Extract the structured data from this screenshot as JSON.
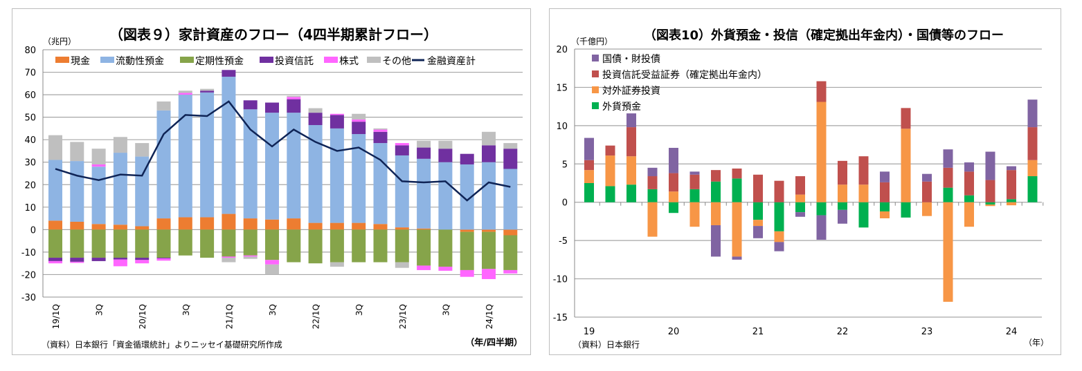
{
  "chart_data": [
    {
      "type": "bar",
      "stacked": true,
      "title": "（図表９）家計資産のフロー（4四半期累計フロー）",
      "ylabel": "（兆円）",
      "xlabel": "（年/四半期）",
      "source": "（資料）日本銀行「資金循環統計」よりニッセイ基礎研究所作成",
      "ylim": [
        -30,
        80
      ],
      "yticks": [
        80,
        70,
        60,
        50,
        40,
        30,
        20,
        10,
        0,
        -10,
        -20,
        -30
      ],
      "grid": true,
      "legend": "top",
      "categories": [
        "19/1Q",
        "19/2Q",
        "19/3Q",
        "19/4Q",
        "20/1Q",
        "20/2Q",
        "20/3Q",
        "20/4Q",
        "21/1Q",
        "21/2Q",
        "21/3Q",
        "21/4Q",
        "22/1Q",
        "22/2Q",
        "22/3Q",
        "22/4Q",
        "23/1Q",
        "23/2Q",
        "23/3Q",
        "23/4Q",
        "24/1Q",
        "24/2Q"
      ],
      "tick_labels": [
        "19/1Q",
        "",
        "3Q",
        "",
        "20/1Q",
        "",
        "3Q",
        "",
        "21/1Q",
        "",
        "3Q",
        "",
        "22/1Q",
        "",
        "3Q",
        "",
        "23/1Q",
        "",
        "3Q",
        "",
        "24/1Q",
        ""
      ],
      "series": [
        {
          "name": "現金",
          "color": "#ed7d31",
          "values": [
            4,
            3.5,
            2.5,
            2.2,
            1.5,
            5,
            5.5,
            5.5,
            7,
            5,
            4.5,
            5,
            3,
            3,
            3,
            2.5,
            1,
            0.5,
            0,
            -1,
            -1,
            -2.5
          ]
        },
        {
          "name": "流動性預金",
          "color": "#8eb4e3",
          "values": [
            27,
            27,
            25.5,
            32,
            31,
            48,
            54.5,
            55.5,
            61,
            48.5,
            47.5,
            47,
            43.5,
            42,
            39.5,
            36,
            32,
            31,
            30,
            29,
            30,
            27
          ]
        },
        {
          "name": "定期性預金",
          "color": "#86a44a",
          "values": [
            -12.5,
            -12.5,
            -12.5,
            -12.5,
            -12.5,
            -12.5,
            -11.5,
            -12.5,
            -12,
            -11.5,
            -13.5,
            -14.5,
            -15,
            -14.5,
            -14.5,
            -14.5,
            -14.5,
            -16,
            -16.5,
            -17,
            -16.5,
            -15.5
          ]
        },
        {
          "name": "投資信託",
          "color": "#7030a0",
          "values": [
            -1.5,
            -1.8,
            -1.5,
            -0.8,
            -1,
            -0.3,
            0,
            0.8,
            3,
            4,
            4.5,
            6,
            5.5,
            6,
            5.5,
            5,
            4.5,
            5,
            6,
            4.7,
            7.5,
            9
          ]
        },
        {
          "name": "株式",
          "color": "#ff66ff",
          "values": [
            -1,
            -0.5,
            1,
            -3,
            -1.5,
            -1,
            0.8,
            0,
            -0.5,
            -0.5,
            -2,
            1,
            0,
            0.5,
            1,
            1,
            1,
            -2,
            -1.8,
            -3,
            -4.5,
            -1.5
          ]
        },
        {
          "name": "その他",
          "color": "#bfbfbf",
          "values": [
            11,
            8.5,
            7,
            7,
            6,
            4,
            1,
            0.8,
            -2,
            -1,
            -4.5,
            0.5,
            2,
            -2,
            2.5,
            0.5,
            -2.5,
            3,
            3.5,
            0,
            6,
            2.5
          ]
        }
      ],
      "line_series": {
        "name": "金融資産計",
        "color": "#0f2456",
        "values": [
          27,
          24,
          22,
          24.5,
          24,
          42.5,
          51,
          50.5,
          57,
          44.5,
          37,
          44.5,
          39,
          35,
          36.5,
          31,
          21.5,
          21,
          21.5,
          13,
          21,
          19
        ]
      }
    },
    {
      "type": "bar",
      "stacked": true,
      "title": "（図表10）外貨預金・投信（確定拠出年金内）・国債等のフロー",
      "ylabel": "（千億円）",
      "xlabel": "（年）",
      "source": "（資料）日本銀行",
      "ylim": [
        -15,
        20
      ],
      "yticks": [
        20,
        15,
        10,
        5,
        0,
        -5,
        -10,
        -15
      ],
      "grid": true,
      "legend": "top-left",
      "categories": [
        "19Q1",
        "19Q2",
        "19Q3",
        "19Q4",
        "20Q1",
        "20Q2",
        "20Q3",
        "20Q4",
        "21Q1",
        "21Q2",
        "21Q3",
        "21Q4",
        "22Q1",
        "22Q2",
        "22Q3",
        "22Q4",
        "23Q1",
        "23Q2",
        "23Q3",
        "23Q4",
        "24Q1",
        "24Q2"
      ],
      "tick_labels": [
        "19",
        "",
        "",
        "",
        "20",
        "",
        "",
        "",
        "21",
        "",
        "",
        "",
        "22",
        "",
        "",
        "",
        "23",
        "",
        "",
        "",
        "24",
        ""
      ],
      "series": [
        {
          "name": "外貨預金",
          "color": "#00b050",
          "values": [
            2.5,
            2.1,
            2.3,
            1.7,
            -1.4,
            1.7,
            2.7,
            3.1,
            -2.3,
            -3.8,
            -1.3,
            -1.7,
            -1.0,
            -3.3,
            -1.2,
            -2.0,
            0,
            1.9,
            0.9,
            -0.3,
            0.4,
            3.4
          ]
        },
        {
          "name": "対外証券投資",
          "color": "#f79646",
          "values": [
            1.7,
            4.0,
            3.7,
            -4.5,
            1.4,
            -3.2,
            -3.0,
            -7.1,
            -0.8,
            -1.4,
            1.0,
            13.1,
            2.3,
            2.3,
            -0.9,
            9.6,
            -1.8,
            -13.0,
            -3.2,
            -0.2,
            -0.4,
            2.1
          ]
        },
        {
          "name": "投資信託受益証券（確定拠出年金内）",
          "color": "#c0504d",
          "values": [
            1.3,
            1.3,
            3.8,
            1.7,
            2.4,
            1.9,
            1.5,
            1.3,
            3.6,
            2.8,
            2.4,
            2.7,
            3.1,
            3.7,
            2.6,
            2.7,
            2.7,
            2.6,
            3.1,
            2.9,
            3.8,
            4.3
          ]
        },
        {
          "name": "国債・財投債",
          "color": "#8064a2",
          "values": [
            2.9,
            0,
            1.8,
            1.1,
            3.3,
            0.4,
            -4.1,
            -0.4,
            -1.6,
            -1.2,
            -0.6,
            -3.2,
            -1.8,
            0,
            1.4,
            0,
            1.0,
            2.4,
            1.2,
            3.7,
            0.5,
            3.6
          ]
        }
      ],
      "legend_order": [
        3,
        2,
        1,
        0
      ]
    }
  ]
}
